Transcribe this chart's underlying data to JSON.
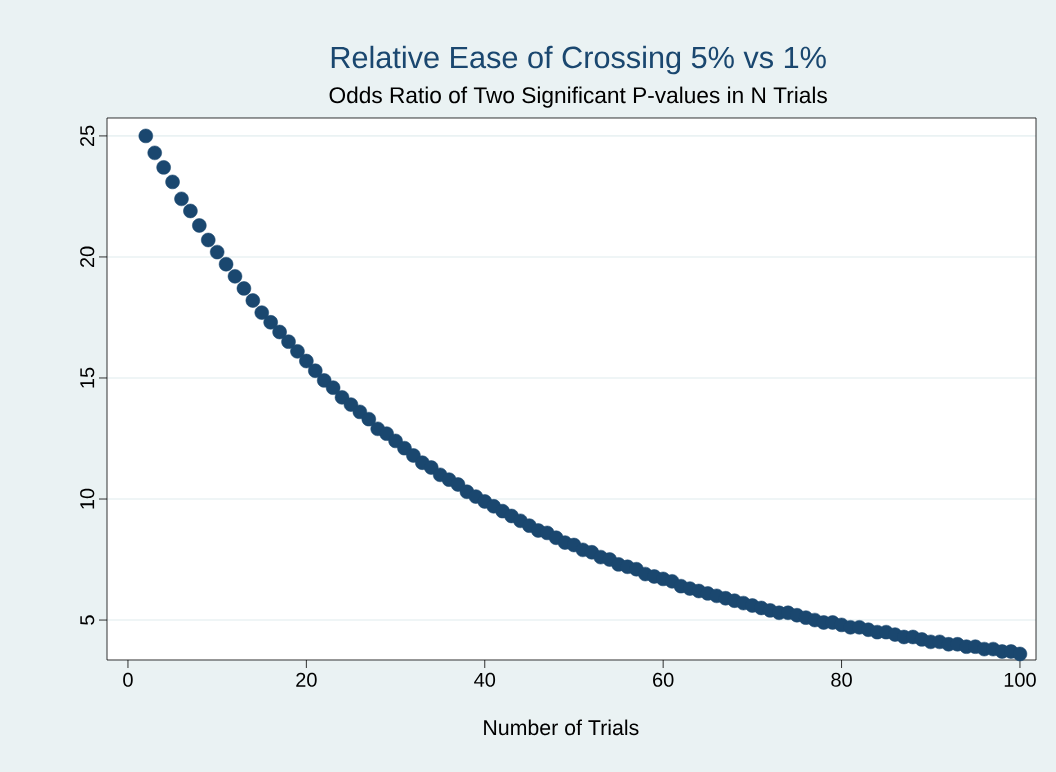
{
  "chart_data": {
    "type": "scatter",
    "title": "Relative Ease of Crossing 5% vs 1%",
    "subtitle": "Odds Ratio of Two Significant P-values in N Trials",
    "xlabel": "Number of Trials",
    "x": [
      2,
      3,
      4,
      5,
      6,
      7,
      8,
      9,
      10,
      11,
      12,
      13,
      14,
      15,
      16,
      17,
      18,
      19,
      20,
      21,
      22,
      23,
      24,
      25,
      26,
      27,
      28,
      29,
      30,
      31,
      32,
      33,
      34,
      35,
      36,
      37,
      38,
      39,
      40,
      41,
      42,
      43,
      44,
      45,
      46,
      47,
      48,
      49,
      50,
      51,
      52,
      53,
      54,
      55,
      56,
      57,
      58,
      59,
      60,
      61,
      62,
      63,
      64,
      65,
      66,
      67,
      68,
      69,
      70,
      71,
      72,
      73,
      74,
      75,
      76,
      77,
      78,
      79,
      80,
      81,
      82,
      83,
      84,
      85,
      86,
      87,
      88,
      89,
      90,
      91,
      92,
      93,
      94,
      95,
      96,
      97,
      98,
      99,
      100
    ],
    "values": [
      25.0,
      24.3,
      23.7,
      23.1,
      22.4,
      21.9,
      21.3,
      20.7,
      20.2,
      19.7,
      19.2,
      18.7,
      18.2,
      17.7,
      17.3,
      16.9,
      16.5,
      16.1,
      15.7,
      15.3,
      14.9,
      14.6,
      14.2,
      13.9,
      13.6,
      13.3,
      12.9,
      12.7,
      12.4,
      12.1,
      11.8,
      11.5,
      11.3,
      11.0,
      10.8,
      10.6,
      10.3,
      10.1,
      9.9,
      9.7,
      9.5,
      9.3,
      9.1,
      8.9,
      8.7,
      8.6,
      8.4,
      8.2,
      8.1,
      7.9,
      7.8,
      7.6,
      7.5,
      7.3,
      7.2,
      7.1,
      6.9,
      6.8,
      6.7,
      6.6,
      6.4,
      6.3,
      6.2,
      6.1,
      6.0,
      5.9,
      5.8,
      5.7,
      5.6,
      5.5,
      5.4,
      5.3,
      5.3,
      5.2,
      5.1,
      5.0,
      4.9,
      4.9,
      4.8,
      4.7,
      4.7,
      4.6,
      4.5,
      4.5,
      4.4,
      4.3,
      4.3,
      4.2,
      4.1,
      4.1,
      4.0,
      4.0,
      3.9,
      3.9,
      3.8,
      3.8,
      3.7,
      3.7,
      3.6
    ],
    "color": "#1a476f",
    "marker": "circle",
    "grid": "y",
    "xlim": [
      -2.35,
      101.8
    ],
    "ylim": [
      3.35,
      25.74
    ],
    "xticks": [
      0,
      20,
      40,
      60,
      80,
      100
    ],
    "yticks": [
      5,
      10,
      15,
      20,
      25
    ]
  }
}
